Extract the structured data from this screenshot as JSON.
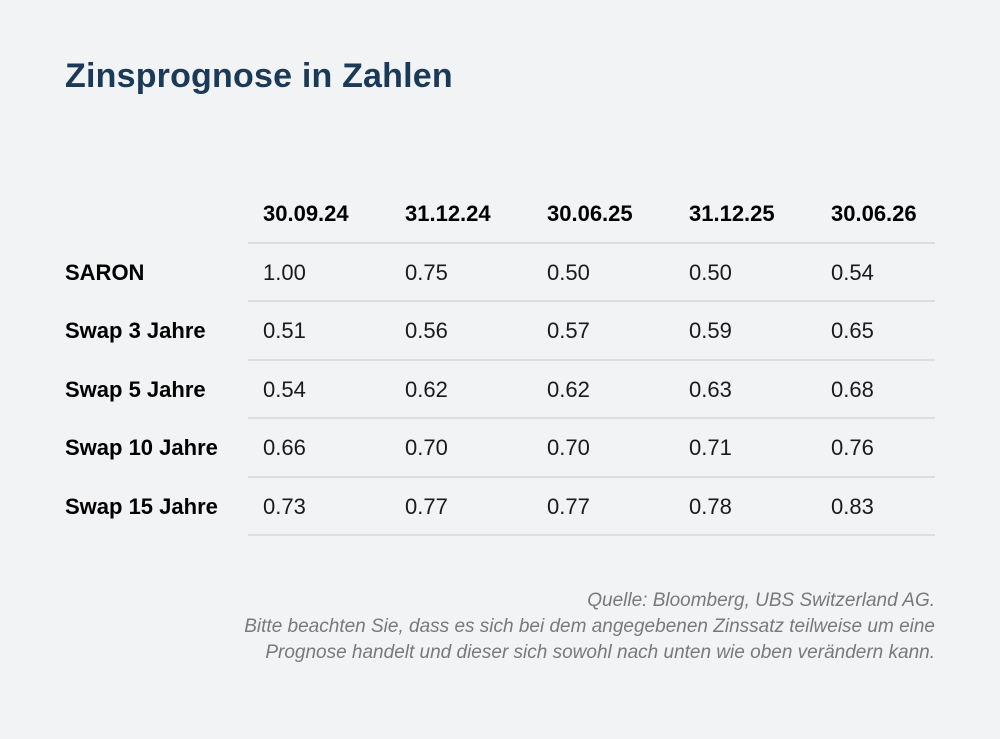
{
  "page": {
    "background_color": "#f2f3f5",
    "divider_color": "#dcdee0"
  },
  "title": {
    "text": "Zinsprognose in Zahlen",
    "color": "#1b3a57"
  },
  "table": {
    "columns": [
      "30.09.24",
      "31.12.24",
      "30.06.25",
      "31.12.25",
      "30.06.26"
    ],
    "rows": [
      {
        "label": "SARON",
        "values": [
          "1.00",
          "0.75",
          "0.50",
          "0.50",
          "0.54"
        ]
      },
      {
        "label": "Swap 3 Jahre",
        "values": [
          "0.51",
          "0.56",
          "0.57",
          "0.59",
          "0.65"
        ]
      },
      {
        "label": "Swap 5 Jahre",
        "values": [
          "0.54",
          "0.62",
          "0.62",
          "0.63",
          "0.68"
        ]
      },
      {
        "label": "Swap 10 Jahre",
        "values": [
          "0.66",
          "0.70",
          "0.70",
          "0.71",
          "0.76"
        ]
      },
      {
        "label": "Swap 15 Jahre",
        "values": [
          "0.73",
          "0.77",
          "0.77",
          "0.78",
          "0.83"
        ]
      }
    ]
  },
  "footer": {
    "color": "#77797c",
    "lines": [
      "Quelle: Bloomberg, UBS Switzerland AG.",
      "Bitte beachten Sie, dass es sich bei dem angegebenen Zinssatz teilweise um eine",
      "Prognose handelt und dieser sich sowohl nach unten wie oben verändern kann."
    ]
  },
  "chart_data": {
    "type": "table",
    "title": "Zinsprognose in Zahlen",
    "categories": [
      "30.09.24",
      "31.12.24",
      "30.06.25",
      "31.12.25",
      "30.06.26"
    ],
    "series": [
      {
        "name": "SARON",
        "values": [
          1.0,
          0.75,
          0.5,
          0.5,
          0.54
        ]
      },
      {
        "name": "Swap 3 Jahre",
        "values": [
          0.51,
          0.56,
          0.57,
          0.59,
          0.65
        ]
      },
      {
        "name": "Swap 5 Jahre",
        "values": [
          0.54,
          0.62,
          0.62,
          0.63,
          0.68
        ]
      },
      {
        "name": "Swap 10 Jahre",
        "values": [
          0.66,
          0.7,
          0.7,
          0.71,
          0.76
        ]
      },
      {
        "name": "Swap 15 Jahre",
        "values": [
          0.73,
          0.77,
          0.77,
          0.78,
          0.83
        ]
      }
    ],
    "source": "Quelle: Bloomberg, UBS Switzerland AG.",
    "annotation": "Bitte beachten Sie, dass es sich bei dem angegebenen Zinssatz teilweise um eine Prognose handelt und dieser sich sowohl nach unten wie oben verändern kann."
  }
}
